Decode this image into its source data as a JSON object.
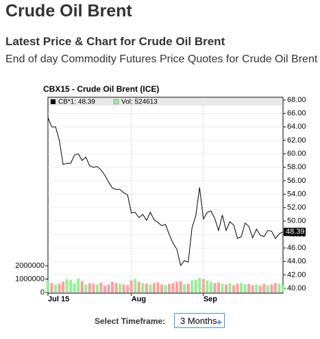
{
  "page": {
    "title": "Crude Oil Brent",
    "heading": "Latest Price & Chart for Crude Oil Brent",
    "subtitle": "End of day Commodity Futures Price Quotes for Crude Oil Brent"
  },
  "chart_data": {
    "type": "line",
    "title": "CBX15 - Crude Oil Brent (ICE)",
    "categories": [
      "Jul 15",
      null,
      null,
      null,
      null,
      null,
      null,
      null,
      null,
      null,
      null,
      null,
      null,
      null,
      null,
      null,
      null,
      null,
      null,
      null,
      null,
      null,
      "Aug",
      null,
      null,
      null,
      null,
      null,
      null,
      null,
      null,
      null,
      null,
      null,
      null,
      null,
      null,
      null,
      null,
      null,
      null,
      "Sep",
      null,
      null,
      null,
      null,
      null,
      null,
      null,
      null,
      null,
      null,
      null,
      null,
      null,
      null,
      null,
      null,
      null,
      null,
      null,
      null,
      null
    ],
    "series": [
      {
        "name": "CB*1: 48.39",
        "color": "#000000",
        "values": [
          65.4,
          64,
          64,
          62,
          58.4,
          58.6,
          58.6,
          59.8,
          60,
          59,
          59.5,
          58.2,
          58,
          58.1,
          57.6,
          56.8,
          55.8,
          54.9,
          54.7,
          54.7,
          54.2,
          53.9,
          51.2,
          51.3,
          50.5,
          51,
          50.1,
          51.3,
          50.2,
          49.8,
          49.3,
          49.5,
          48,
          46.7,
          45.8,
          43.4,
          44.1,
          43.9,
          49,
          50.8,
          55,
          50.3,
          51.3,
          51.5,
          50.4,
          48.6,
          50.9,
          48.6,
          49.9,
          49.4,
          47.4,
          47.7,
          49.7,
          49.2,
          47.5,
          48.8,
          47.9,
          47.7,
          48.6,
          48.5,
          47.4,
          48.1,
          48.39
        ]
      },
      {
        "name": "Vol: 524613",
        "color": "#99ee99",
        "axis": "y2",
        "up_color": "#99ee99",
        "down_color": "#f4a4a4",
        "values": [
          900000,
          700000,
          600000,
          650000,
          800000,
          1000000,
          950000,
          700000,
          1050000,
          850000,
          600000,
          700000,
          650000,
          600000,
          750000,
          500000,
          600000,
          800000,
          700000,
          650000,
          600000,
          550000,
          900000,
          1000000,
          800000,
          700000,
          650000,
          600000,
          700000,
          750000,
          600000,
          550000,
          650000,
          700000,
          800000,
          850000,
          600000,
          650000,
          900000,
          950000,
          1100000,
          1000000,
          900000,
          800000,
          700000,
          750000,
          650000,
          600000,
          700000,
          550000,
          650000,
          700000,
          600000,
          650000,
          550000,
          600000,
          500000,
          650000,
          550000,
          600000,
          700000,
          650000,
          524613
        ]
      }
    ],
    "ylim": [
      40,
      68
    ],
    "yticks": [
      {
        "value": 40,
        "label": "40.00"
      },
      {
        "value": 42,
        "label": "42.00"
      },
      {
        "value": 44,
        "label": "44.00"
      },
      {
        "value": 46,
        "label": "46.00"
      },
      {
        "value": 48,
        "label": "48.00"
      },
      {
        "value": 50,
        "label": "50.00"
      },
      {
        "value": 52,
        "label": "52.00"
      },
      {
        "value": 54,
        "label": "54.00"
      },
      {
        "value": 56,
        "label": "56.00"
      },
      {
        "value": 58,
        "label": "58.00"
      },
      {
        "value": 60,
        "label": "60.00"
      },
      {
        "value": 62,
        "label": "62.00"
      },
      {
        "value": 64,
        "label": "64.00"
      },
      {
        "value": 66,
        "label": "66.00"
      },
      {
        "value": 68,
        "label": "68.00"
      }
    ],
    "y2lim": [
      0,
      2000000
    ],
    "y2ticks": [
      0,
      1000000,
      2000000
    ],
    "grid": true
  },
  "timeframe": {
    "label": "Select Timeframe:",
    "value": "3 Months"
  }
}
